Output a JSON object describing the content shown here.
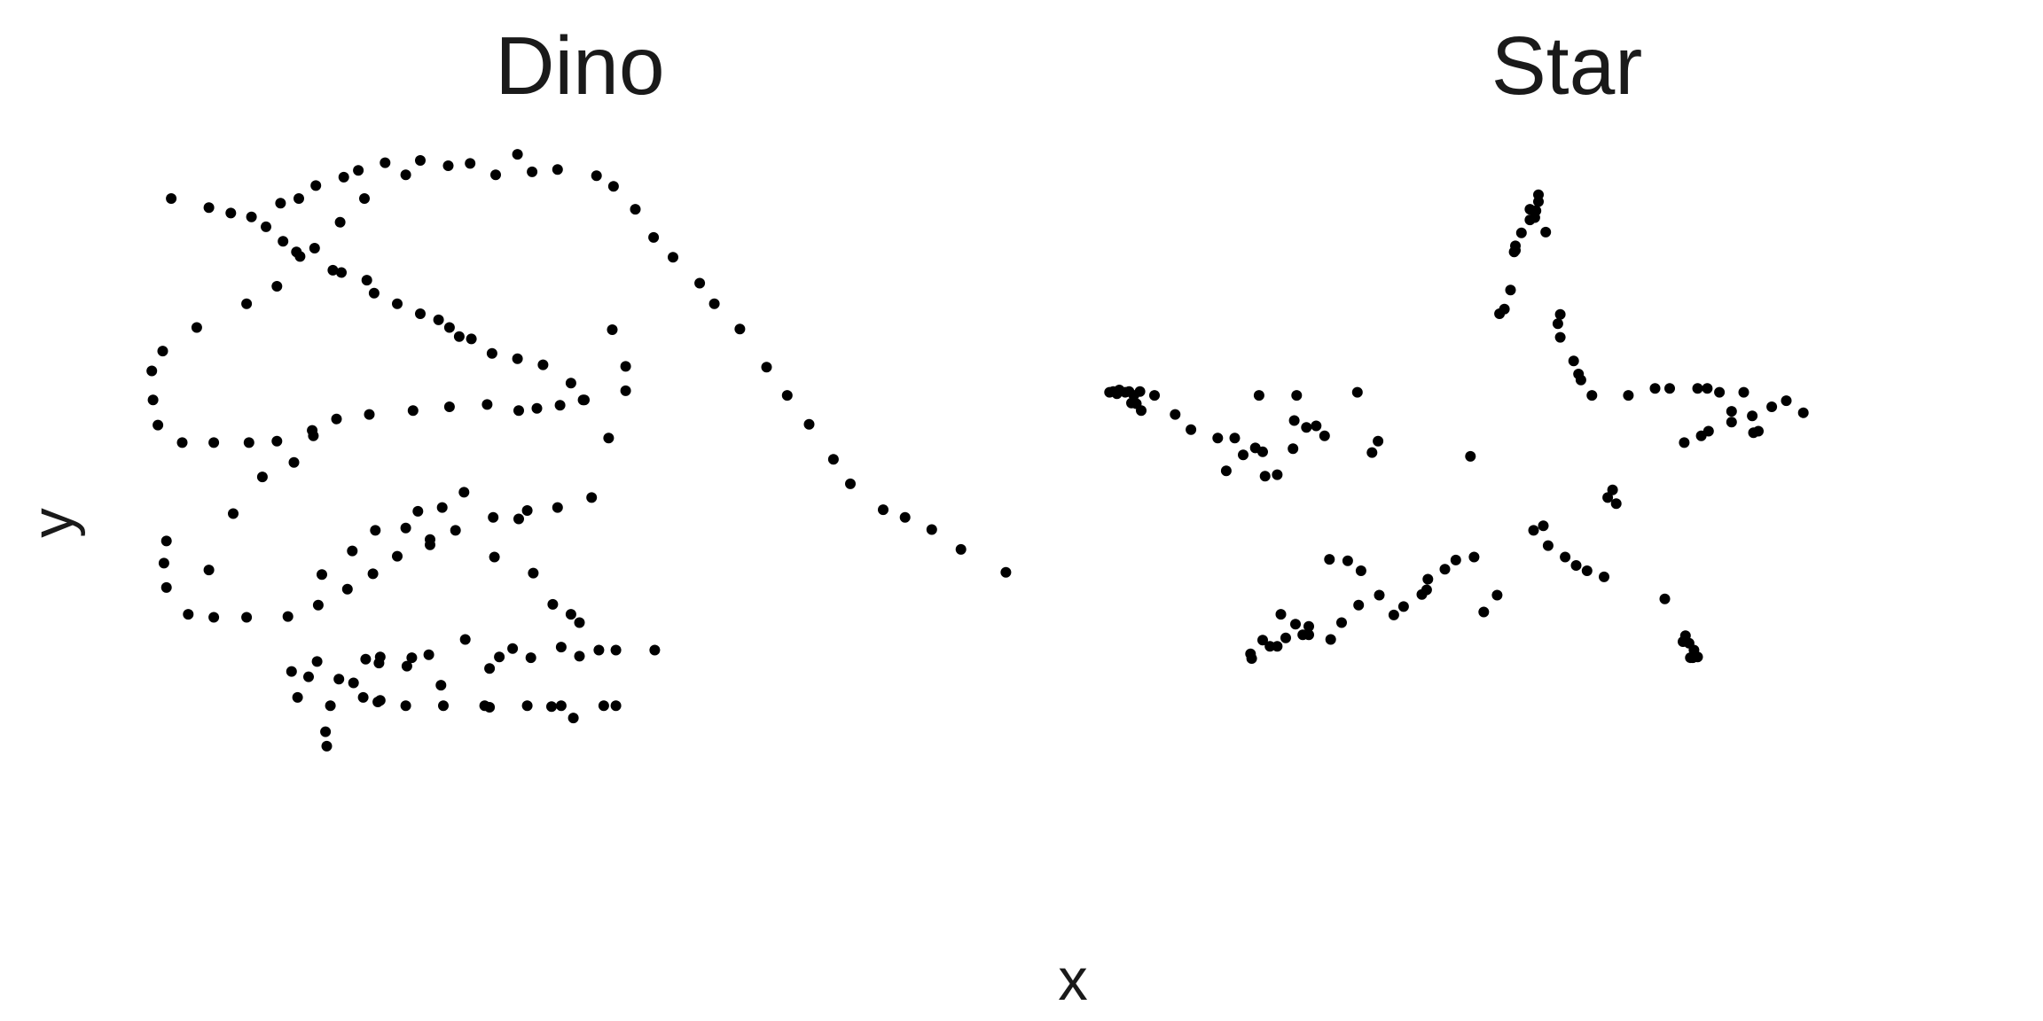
{
  "figure": {
    "xlabel": "x",
    "ylabel": "y",
    "point_color": "#000000",
    "background": "#ffffff"
  },
  "chart_data": [
    {
      "type": "scatter",
      "title": "Dino",
      "xlabel": "x",
      "ylabel": "y",
      "xlim": [
        22,
        99
      ],
      "ylim": [
        -2.6,
        100
      ],
      "grid": false,
      "points": [
        [
          55.4,
          97.2
        ],
        [
          51.5,
          96.0
        ],
        [
          46.2,
          94.5
        ],
        [
          42.8,
          91.4
        ],
        [
          40.8,
          88.3
        ],
        [
          38.7,
          84.9
        ],
        [
          35.6,
          79.9
        ],
        [
          33.1,
          77.6
        ],
        [
          29.0,
          74.5
        ],
        [
          26.2,
          71.4
        ],
        [
          25.3,
          68.8
        ],
        [
          25.4,
          65.0
        ],
        [
          25.8,
          61.7
        ],
        [
          27.8,
          59.4
        ],
        [
          30.4,
          59.4
        ],
        [
          33.3,
          59.4
        ],
        [
          35.6,
          59.6
        ],
        [
          38.5,
          61.0
        ],
        [
          40.5,
          62.5
        ],
        [
          43.2,
          63.1
        ],
        [
          46.8,
          63.6
        ],
        [
          49.8,
          64.1
        ],
        [
          52.9,
          64.4
        ],
        [
          55.5,
          63.6
        ],
        [
          57.0,
          63.9
        ],
        [
          58.9,
          64.3
        ],
        [
          60.8,
          65.0
        ],
        [
          60.9,
          65.0
        ],
        [
          59.8,
          67.2
        ],
        [
          57.5,
          69.6
        ],
        [
          55.4,
          70.4
        ],
        [
          53.3,
          71.1
        ],
        [
          51.6,
          73.0
        ],
        [
          50.6,
          73.3
        ],
        [
          49.8,
          74.5
        ],
        [
          48.9,
          75.5
        ],
        [
          47.4,
          76.3
        ],
        [
          45.5,
          77.6
        ],
        [
          43.6,
          79.0
        ],
        [
          43.0,
          80.7
        ],
        [
          40.9,
          81.7
        ],
        [
          40.2,
          82.0
        ],
        [
          37.5,
          83.8
        ],
        [
          37.2,
          84.4
        ],
        [
          36.1,
          85.8
        ],
        [
          34.7,
          87.7
        ],
        [
          33.5,
          89.0
        ],
        [
          31.8,
          89.5
        ],
        [
          30.0,
          90.2
        ],
        [
          26.9,
          91.4
        ],
        [
          35.9,
          90.8
        ],
        [
          37.4,
          91.4
        ],
        [
          38.8,
          93.1
        ],
        [
          41.1,
          94.2
        ],
        [
          42.3,
          95.1
        ],
        [
          44.5,
          96.1
        ],
        [
          47.4,
          96.4
        ],
        [
          49.7,
          95.7
        ],
        [
          53.6,
          94.5
        ],
        [
          56.6,
          94.9
        ],
        [
          58.7,
          95.2
        ],
        [
          61.9,
          94.4
        ],
        [
          63.3,
          93.0
        ],
        [
          65.1,
          90.0
        ],
        [
          66.6,
          86.3
        ],
        [
          68.2,
          83.7
        ],
        [
          70.4,
          80.3
        ],
        [
          71.6,
          77.6
        ],
        [
          73.7,
          74.3
        ],
        [
          75.9,
          69.3
        ],
        [
          77.6,
          65.6
        ],
        [
          79.4,
          61.8
        ],
        [
          81.4,
          57.2
        ],
        [
          82.8,
          54.0
        ],
        [
          85.5,
          50.6
        ],
        [
          87.3,
          49.6
        ],
        [
          89.5,
          48.0
        ],
        [
          91.9,
          45.4
        ],
        [
          95.6,
          42.4
        ],
        [
          63.2,
          74.2
        ],
        [
          64.3,
          69.4
        ],
        [
          64.3,
          66.2
        ],
        [
          62.9,
          60.0
        ],
        [
          61.5,
          52.2
        ],
        [
          58.7,
          50.9
        ],
        [
          56.2,
          50.5
        ],
        [
          53.4,
          49.6
        ],
        [
          50.3,
          47.9
        ],
        [
          48.2,
          46.7
        ],
        [
          48.2,
          46.0
        ],
        [
          45.5,
          44.5
        ],
        [
          43.5,
          42.2
        ],
        [
          41.4,
          40.2
        ],
        [
          39.0,
          38.1
        ],
        [
          36.5,
          36.6
        ],
        [
          33.1,
          36.5
        ],
        [
          30.4,
          36.5
        ],
        [
          28.3,
          36.9
        ],
        [
          26.5,
          40.4
        ],
        [
          26.3,
          43.6
        ],
        [
          26.5,
          46.5
        ],
        [
          30.0,
          42.7
        ],
        [
          32.0,
          50.1
        ],
        [
          34.4,
          54.9
        ],
        [
          37.0,
          56.8
        ],
        [
          38.6,
          60.3
        ],
        [
          39.3,
          42.1
        ],
        [
          41.8,
          45.2
        ],
        [
          43.7,
          47.9
        ],
        [
          46.2,
          48.2
        ],
        [
          47.2,
          50.4
        ],
        [
          49.2,
          50.9
        ],
        [
          51.0,
          52.9
        ],
        [
          53.5,
          44.4
        ],
        [
          55.5,
          49.4
        ],
        [
          56.7,
          42.3
        ],
        [
          58.3,
          38.2
        ],
        [
          59.8,
          36.9
        ],
        [
          60.5,
          35.8
        ],
        [
          62.1,
          32.2
        ],
        [
          63.5,
          32.2
        ],
        [
          66.7,
          32.2
        ],
        [
          53.1,
          29.8
        ],
        [
          53.9,
          31.3
        ],
        [
          56.5,
          31.2
        ],
        [
          59.0,
          32.6
        ],
        [
          60.5,
          31.4
        ],
        [
          63.5,
          24.9
        ],
        [
          62.5,
          24.9
        ],
        [
          59.0,
          24.9
        ],
        [
          56.2,
          24.9
        ],
        [
          52.7,
          24.9
        ],
        [
          49.3,
          24.9
        ],
        [
          46.2,
          24.9
        ],
        [
          44.1,
          25.6
        ],
        [
          41.9,
          27.9
        ],
        [
          40.0,
          24.9
        ],
        [
          38.2,
          28.7
        ],
        [
          37.3,
          26.0
        ],
        [
          36.8,
          29.4
        ],
        [
          40.7,
          28.4
        ],
        [
          42.7,
          26.0
        ],
        [
          44.1,
          31.3
        ],
        [
          46.7,
          31.2
        ],
        [
          48.1,
          31.6
        ],
        [
          51.1,
          33.6
        ],
        [
          55.0,
          32.4
        ],
        [
          58.2,
          24.8
        ],
        [
          60.0,
          23.3
        ],
        [
          39.6,
          21.5
        ],
        [
          39.7,
          19.6
        ],
        [
          43.9,
          25.4
        ],
        [
          42.9,
          31.0
        ],
        [
          38.9,
          30.7
        ],
        [
          44.0,
          30.5
        ],
        [
          46.3,
          30.1
        ],
        [
          49.1,
          27.6
        ],
        [
          53.1,
          24.7
        ]
      ]
    },
    {
      "type": "scatter",
      "title": "Star",
      "xlabel": "x",
      "ylabel": "y",
      "xlim": [
        22,
        99
      ],
      "ylim": [
        -2.6,
        100
      ],
      "grid": false,
      "points": [
        [
          58.2,
          91.9
        ],
        [
          58.2,
          91.0
        ],
        [
          58.0,
          89.8
        ],
        [
          57.5,
          90.0
        ],
        [
          57.9,
          88.9
        ],
        [
          57.5,
          88.6
        ],
        [
          56.8,
          86.9
        ],
        [
          56.3,
          85.2
        ],
        [
          56.3,
          84.6
        ],
        [
          56.2,
          84.4
        ],
        [
          55.9,
          79.4
        ],
        [
          55.4,
          76.9
        ],
        [
          55.0,
          76.3
        ],
        [
          58.8,
          87.0
        ],
        [
          60.0,
          76.2
        ],
        [
          59.8,
          75.0
        ],
        [
          60.0,
          73.2
        ],
        [
          61.1,
          70.1
        ],
        [
          61.5,
          68.4
        ],
        [
          61.7,
          67.6
        ],
        [
          67.8,
          66.5
        ],
        [
          69.0,
          66.5
        ],
        [
          71.3,
          66.5
        ],
        [
          72.1,
          66.5
        ],
        [
          74.1,
          63.5
        ],
        [
          75.8,
          62.9
        ],
        [
          74.1,
          62.1
        ],
        [
          72.2,
          60.9
        ],
        [
          71.6,
          60.3
        ],
        [
          70.2,
          59.4
        ],
        [
          64.3,
          53.2
        ],
        [
          63.9,
          52.2
        ],
        [
          64.6,
          51.4
        ],
        [
          70.3,
          34.1
        ],
        [
          70.1,
          33.3
        ],
        [
          70.6,
          33.1
        ],
        [
          71.0,
          32.2
        ],
        [
          70.7,
          31.2
        ],
        [
          70.9,
          31.2
        ],
        [
          71.3,
          31.3
        ],
        [
          68.6,
          38.9
        ],
        [
          63.6,
          41.8
        ],
        [
          62.2,
          42.6
        ],
        [
          61.3,
          43.3
        ],
        [
          60.4,
          44.4
        ],
        [
          59.0,
          45.9
        ],
        [
          54.8,
          39.4
        ],
        [
          53.7,
          37.2
        ],
        [
          49.1,
          41.5
        ],
        [
          47.1,
          37.9
        ],
        [
          46.3,
          36.8
        ],
        [
          43.6,
          42.6
        ],
        [
          42.5,
          43.9
        ],
        [
          41.0,
          44.1
        ],
        [
          39.3,
          35.3
        ],
        [
          39.3,
          34.2
        ],
        [
          38.2,
          35.6
        ],
        [
          37.0,
          36.9
        ],
        [
          34.5,
          31.7
        ],
        [
          34.6,
          31.1
        ],
        [
          35.5,
          33.5
        ],
        [
          36.1,
          32.7
        ],
        [
          36.7,
          32.7
        ],
        [
          37.4,
          33.8
        ],
        [
          38.8,
          34.2
        ],
        [
          41.1,
          33.6
        ],
        [
          42.0,
          35.8
        ],
        [
          43.4,
          38.1
        ],
        [
          45.1,
          39.4
        ],
        [
          48.6,
          39.5
        ],
        [
          49.0,
          40.1
        ],
        [
          50.5,
          42.8
        ],
        [
          51.4,
          44.0
        ],
        [
          52.9,
          44.4
        ],
        [
          57.8,
          47.9
        ],
        [
          58.6,
          48.5
        ],
        [
          32.5,
          55.7
        ],
        [
          33.9,
          57.8
        ],
        [
          34.9,
          58.7
        ],
        [
          35.5,
          58.2
        ],
        [
          35.7,
          55.0
        ],
        [
          36.7,
          55.2
        ],
        [
          38.0,
          58.6
        ],
        [
          38.1,
          62.3
        ],
        [
          39.1,
          61.4
        ],
        [
          39.9,
          61.6
        ],
        [
          40.6,
          60.3
        ],
        [
          44.5,
          58.1
        ],
        [
          45.0,
          59.6
        ],
        [
          52.6,
          57.6
        ],
        [
          22.9,
          66.0
        ],
        [
          23.2,
          66.1
        ],
        [
          23.7,
          66.3
        ],
        [
          23.5,
          65.8
        ],
        [
          24.2,
          66.0
        ],
        [
          24.5,
          66.1
        ],
        [
          24.9,
          65.6
        ],
        [
          25.4,
          66.1
        ],
        [
          25.1,
          64.5
        ],
        [
          24.7,
          64.6
        ],
        [
          25.5,
          63.6
        ],
        [
          26.6,
          65.6
        ],
        [
          28.3,
          63.1
        ],
        [
          29.6,
          61.1
        ],
        [
          31.8,
          60.0
        ],
        [
          33.2,
          60.0
        ],
        [
          35.2,
          65.6
        ],
        [
          38.3,
          65.6
        ],
        [
          43.3,
          66.0
        ],
        [
          62.6,
          65.6
        ],
        [
          65.6,
          65.6
        ],
        [
          73.1,
          66.0
        ],
        [
          75.1,
          66.0
        ],
        [
          77.4,
          64.1
        ],
        [
          80.0,
          63.3
        ],
        [
          76.3,
          60.9
        ],
        [
          75.9,
          60.7
        ],
        [
          78.6,
          64.9
        ]
      ]
    }
  ]
}
